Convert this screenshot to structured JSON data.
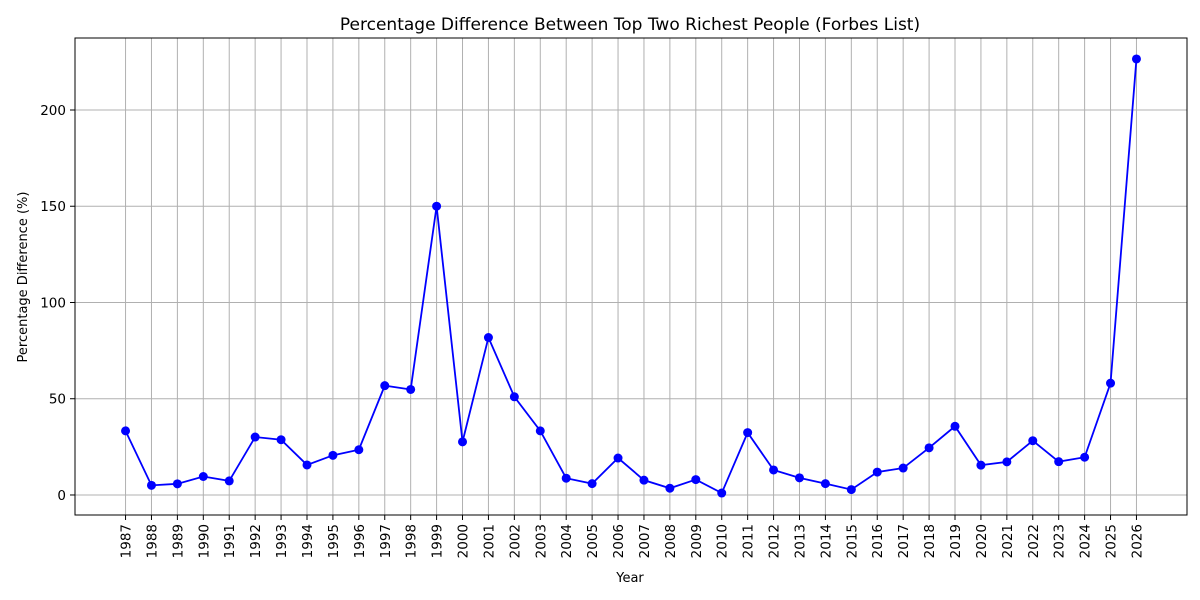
{
  "chart_data": {
    "type": "line",
    "title": "Percentage Difference Between Top Two Richest People (Forbes List)",
    "xlabel": "Year",
    "ylabel": "Percentage Difference (%)",
    "x": [
      1987,
      1988,
      1989,
      1990,
      1991,
      1992,
      1993,
      1994,
      1995,
      1996,
      1997,
      1998,
      1999,
      2000,
      2001,
      2002,
      2003,
      2004,
      2005,
      2006,
      2007,
      2008,
      2009,
      2010,
      2011,
      2012,
      2013,
      2014,
      2015,
      2016,
      2017,
      2018,
      2019,
      2020,
      2021,
      2022,
      2023,
      2024,
      2025,
      2026
    ],
    "series": [
      {
        "values": [
          33.3,
          5.0,
          5.8,
          9.6,
          7.3,
          30.1,
          28.7,
          15.6,
          20.6,
          23.5,
          56.8,
          54.8,
          150.0,
          27.6,
          81.8,
          51.0,
          33.3,
          8.7,
          5.9,
          19.2,
          7.7,
          3.5,
          8.0,
          1.0,
          32.4,
          13.0,
          8.9,
          5.9,
          2.8,
          11.9,
          14.0,
          24.5,
          35.7,
          15.5,
          17.2,
          28.2,
          17.3,
          19.6,
          58.1,
          226.5
        ],
        "color": "#0000ff"
      }
    ],
    "yticks": [
      0,
      50,
      100,
      150,
      200
    ],
    "ylim": [
      -10.4,
      237.4
    ],
    "xlim": [
      1985.05,
      2027.95
    ],
    "grid": true,
    "legend": "none"
  }
}
